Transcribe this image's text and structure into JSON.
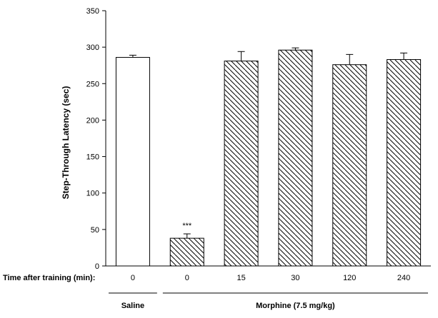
{
  "chart_data": {
    "type": "bar",
    "ylabel": "Step-Through Latency (sec)",
    "xlabel": "Time after training (min):",
    "ylim": [
      0,
      350
    ],
    "yticks": [
      0,
      50,
      100,
      150,
      200,
      250,
      300,
      350
    ],
    "categories": [
      "0",
      "0",
      "15",
      "30",
      "120",
      "240"
    ],
    "values": [
      286,
      38,
      281,
      296,
      276,
      283
    ],
    "errors": [
      3,
      6,
      13,
      3,
      14,
      9
    ],
    "fills": [
      "open",
      "hatched",
      "hatched",
      "hatched",
      "hatched",
      "hatched"
    ],
    "annotations": [
      {
        "category_index": 1,
        "text": "***"
      }
    ],
    "groups": [
      {
        "label": "Saline",
        "from": 0,
        "to": 0
      },
      {
        "label": "Morphine (7.5 mg/kg)",
        "from": 1,
        "to": 5
      }
    ],
    "grid": false,
    "legend": "none"
  }
}
